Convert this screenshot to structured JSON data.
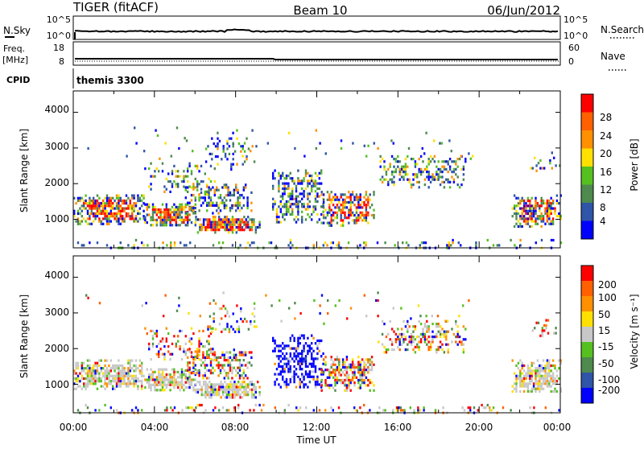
{
  "header": {
    "left": "TIGER (fitACF)",
    "center": "Beam 10",
    "right": "06/Jun/2012"
  },
  "panels": {
    "sky": {
      "left_label": "N.Sky",
      "right_label": "N.Search",
      "left_ticks": [
        "10^5",
        "10^0"
      ],
      "right_ticks": [
        "10^5",
        "10^0"
      ]
    },
    "freq": {
      "left_label_1": "Freq.",
      "left_label_2": "[MHz]",
      "right_label": "Nave",
      "left_ticks": [
        "18",
        "8"
      ],
      "right_ticks": [
        "60",
        "0"
      ]
    },
    "cpid": {
      "label": "CPID",
      "value": "themis 3300"
    }
  },
  "colors": {
    "power": [
      "#0000ff",
      "#2f55a8",
      "#4e8a4e",
      "#55c020",
      "#ffe000",
      "#ff9000",
      "#ff6000",
      "#ff0000"
    ],
    "velocity": [
      "#0000ff",
      "#2f55a8",
      "#4e8a4e",
      "#55c020",
      "#c8c8c8",
      "#ffe000",
      "#ff9000",
      "#ff6000",
      "#ff0000"
    ]
  },
  "chart_data": [
    {
      "type": "heatmap",
      "name": "power",
      "ylabel": "Slant Range [km]",
      "yticks": [
        "4000",
        "3000",
        "2000",
        "1000"
      ],
      "ylim": [
        200,
        4600
      ],
      "colorbar_label": "Power [dB]",
      "colorbar_ticks": [
        "28",
        "24",
        "20",
        "16",
        "12",
        "8",
        "4"
      ]
    },
    {
      "type": "heatmap",
      "name": "velocity",
      "ylabel": "Slant Range [km]",
      "yticks": [
        "4000",
        "3000",
        "2000",
        "1000"
      ],
      "ylim": [
        200,
        4600
      ],
      "colorbar_label": "Velocity [m s⁻¹]",
      "colorbar_ticks": [
        "200",
        "100",
        "50",
        "15",
        "-15",
        "-50",
        "-100",
        "-200"
      ]
    }
  ],
  "xaxis": {
    "label": "Time UT",
    "ticks": [
      "00:00",
      "04:00",
      "08:00",
      "12:00",
      "16:00",
      "20:00",
      "00:00"
    ]
  }
}
